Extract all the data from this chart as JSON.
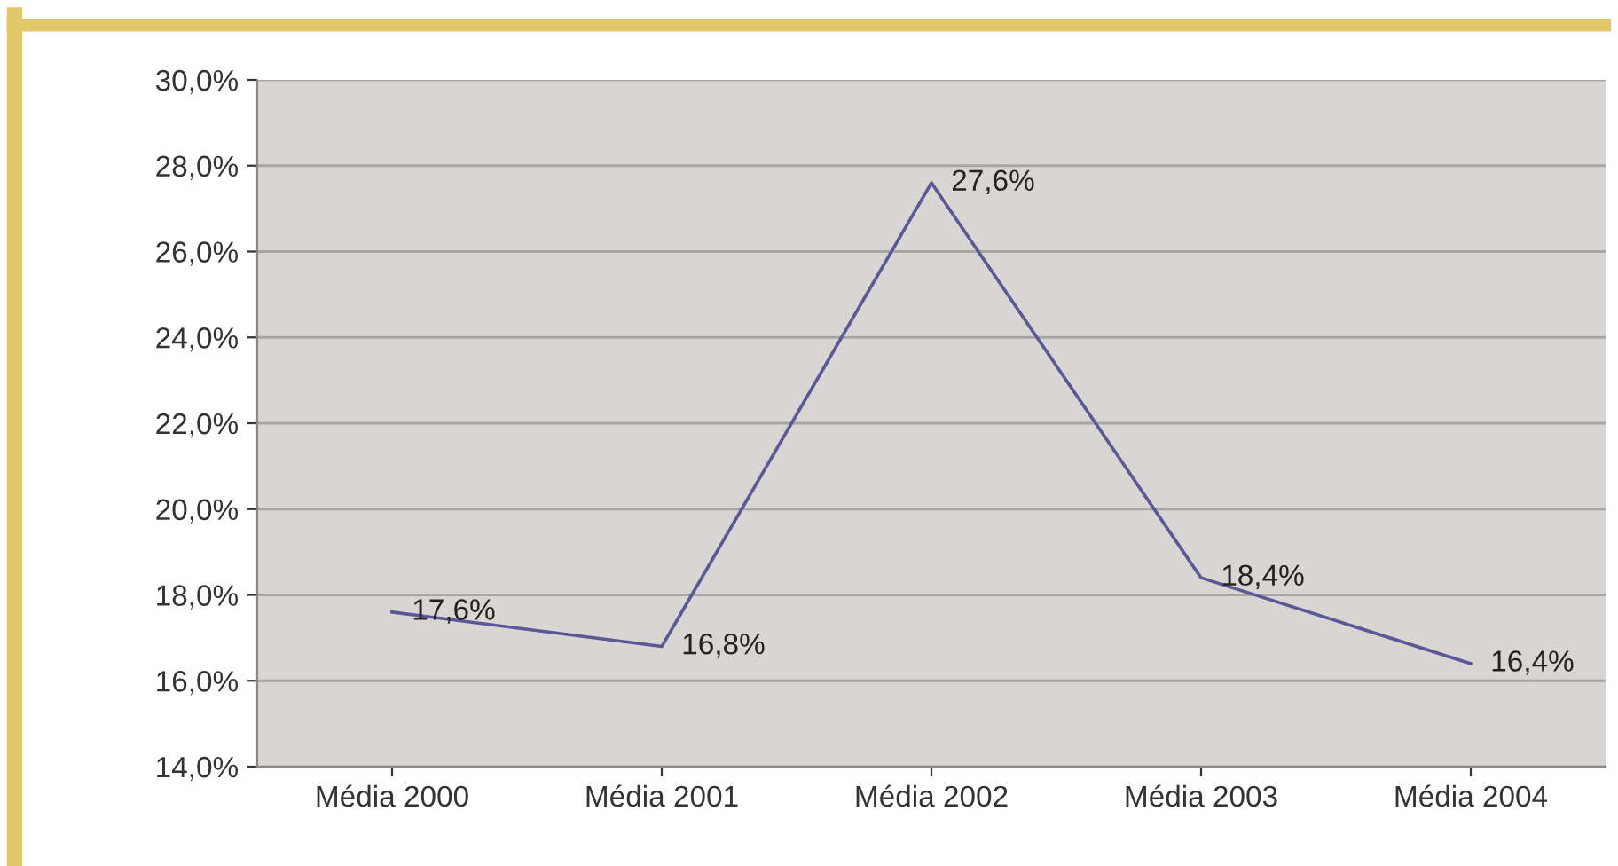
{
  "chart_data": {
    "type": "line",
    "categories": [
      "Média 2000",
      "Média 2001",
      "Média 2002",
      "Média 2003",
      "Média 2004"
    ],
    "series": [
      {
        "color": "#5a5896",
        "values": [
          17.6,
          16.8,
          27.6,
          18.4,
          16.4
        ],
        "value_labels": [
          "17,6%",
          "16,8%",
          "27,6%",
          "18,4%",
          "16,4%"
        ]
      }
    ],
    "ylim": [
      14,
      30
    ],
    "yticks": [
      {
        "value": 14,
        "label": "14,0%"
      },
      {
        "value": 16,
        "label": "16,0%"
      },
      {
        "value": 18,
        "label": "18,0%"
      },
      {
        "value": 20,
        "label": "20,0%"
      },
      {
        "value": 22,
        "label": "22,0%"
      },
      {
        "value": 24,
        "label": "24,0%"
      },
      {
        "value": 26,
        "label": "26,0%"
      },
      {
        "value": 28,
        "label": "28,0%"
      },
      {
        "value": 30,
        "label": "30,0%"
      }
    ],
    "grid": "y",
    "legend": false,
    "marker": "none",
    "line_style": "solid"
  }
}
